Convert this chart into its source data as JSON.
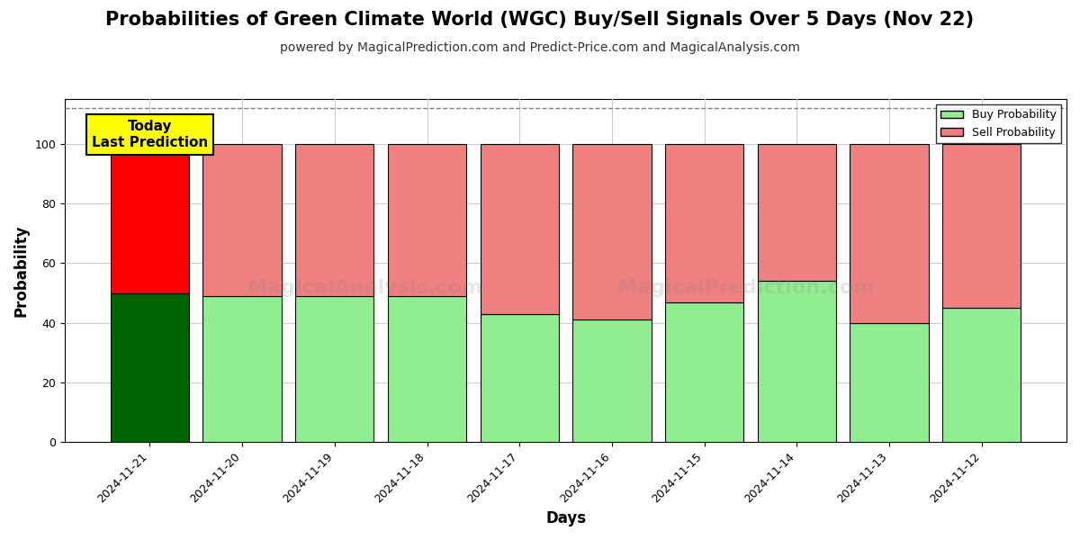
{
  "title": "Probabilities of Green Climate World (WGC) Buy/Sell Signals Over 5 Days (Nov 22)",
  "subtitle": "powered by MagicalPrediction.com and Predict-Price.com and MagicalAnalysis.com",
  "xlabel": "Days",
  "ylabel": "Probability",
  "dates": [
    "2024-11-21",
    "2024-11-20",
    "2024-11-19",
    "2024-11-18",
    "2024-11-17",
    "2024-11-16",
    "2024-11-15",
    "2024-11-14",
    "2024-11-13",
    "2024-11-12"
  ],
  "buy_values": [
    50,
    49,
    49,
    49,
    43,
    41,
    47,
    54,
    40,
    45
  ],
  "sell_values": [
    50,
    51,
    51,
    51,
    57,
    59,
    53,
    46,
    60,
    55
  ],
  "today_buy_color": "#006400",
  "today_sell_color": "#FF0000",
  "other_buy_color": "#90EE90",
  "other_sell_color": "#F08080",
  "bar_edge_color": "#000000",
  "ylim_max": 115,
  "yticks": [
    0,
    20,
    40,
    60,
    80,
    100
  ],
  "dashed_line_y": 112,
  "today_label": "Today\nLast Prediction",
  "legend_buy_label": "Buy Probability",
  "legend_sell_label": "Sell Probability",
  "fig_width": 12,
  "fig_height": 6,
  "bg_color": "#ffffff",
  "grid_color": "#cccccc",
  "title_fontsize": 15,
  "subtitle_fontsize": 10,
  "axis_label_fontsize": 12,
  "tick_fontsize": 9,
  "bar_width": 0.85
}
